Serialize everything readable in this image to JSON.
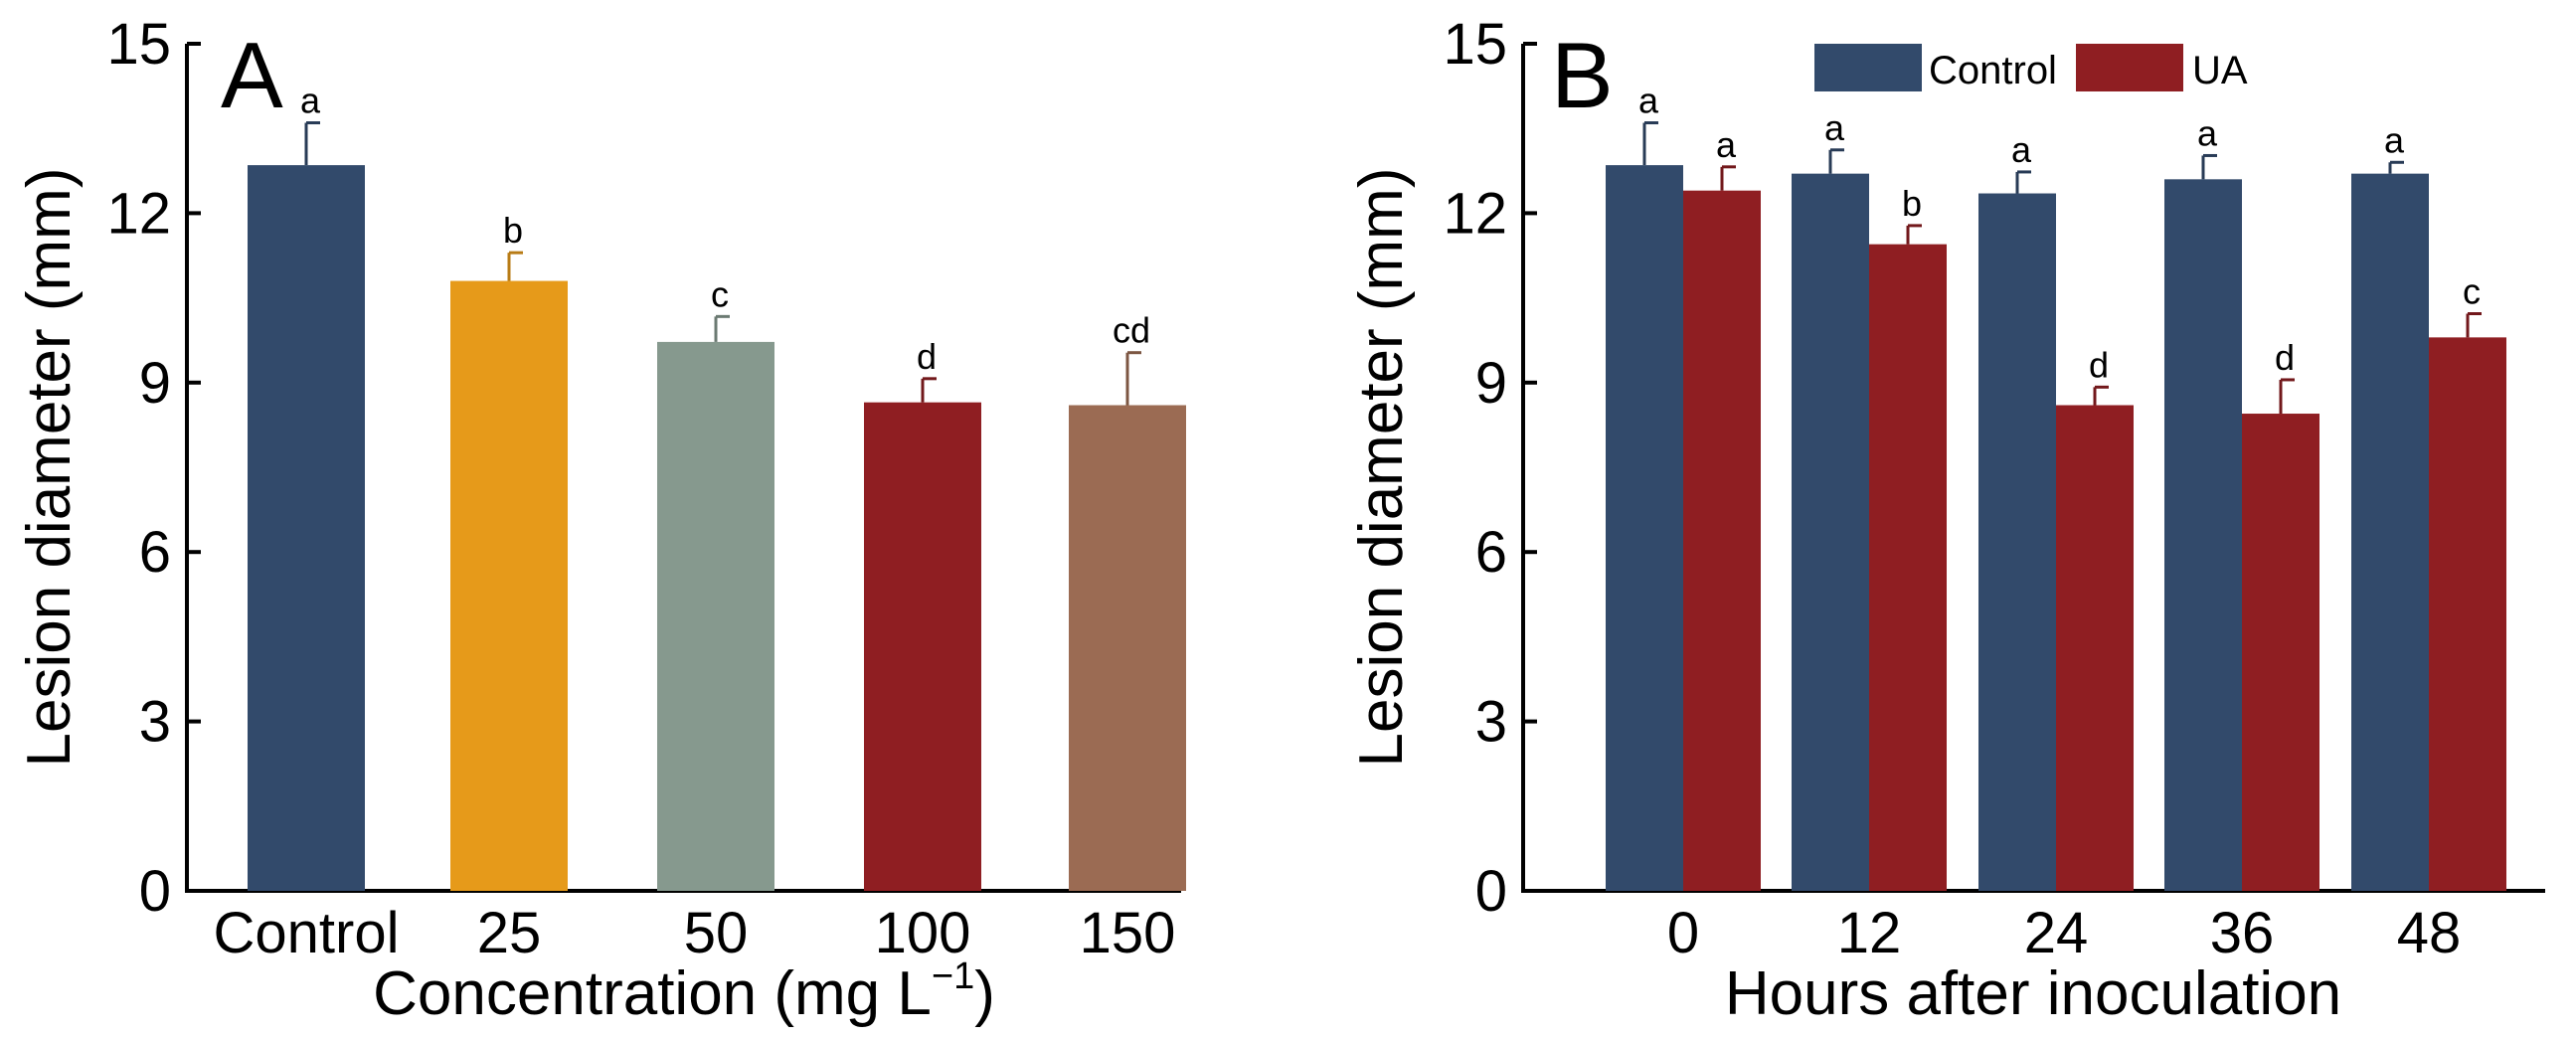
{
  "chart_data": [
    {
      "type": "bar",
      "panel_label": "A",
      "xlabel": "Concentration (mg L",
      "xlabel_sup": "−1",
      "xlabel_tail": ")",
      "ylabel": "Lesion diameter (mm)",
      "ylim": [
        0,
        15
      ],
      "yticks": [
        "0",
        "3",
        "6",
        "9",
        "12",
        "15"
      ],
      "categories": [
        "Control",
        "25",
        "50",
        "100",
        "150"
      ],
      "values": [
        12.85,
        10.8,
        9.72,
        8.65,
        8.6
      ],
      "errors": [
        0.75,
        0.5,
        0.45,
        0.42,
        0.93
      ],
      "significance": [
        "a",
        "b",
        "c",
        "d",
        "cd"
      ],
      "colors": [
        "#324A6B",
        "#E69A1A",
        "#86998E",
        "#8F1E22",
        "#9B6B53"
      ]
    },
    {
      "type": "bar",
      "panel_label": "B",
      "xlabel": "Hours after inoculation",
      "ylabel": "Lesion diameter (mm)",
      "ylim": [
        0,
        15
      ],
      "yticks": [
        "0",
        "3",
        "6",
        "9",
        "12",
        "15"
      ],
      "categories": [
        "0",
        "12",
        "24",
        "36",
        "48"
      ],
      "legend": {
        "position": "top-center"
      },
      "series": [
        {
          "name": "Control",
          "color": "#324A6B",
          "values": [
            12.85,
            12.7,
            12.35,
            12.6,
            12.7
          ],
          "errors": [
            0.75,
            0.42,
            0.38,
            0.42,
            0.2
          ],
          "significance": [
            "a",
            "a",
            "a",
            "a",
            "a"
          ]
        },
        {
          "name": "UA",
          "color": "#8F1E22",
          "values": [
            12.4,
            11.45,
            8.6,
            8.45,
            9.8
          ],
          "errors": [
            0.42,
            0.33,
            0.32,
            0.6,
            0.42
          ],
          "significance": [
            "a",
            "b",
            "d",
            "d",
            "c"
          ]
        }
      ]
    }
  ]
}
